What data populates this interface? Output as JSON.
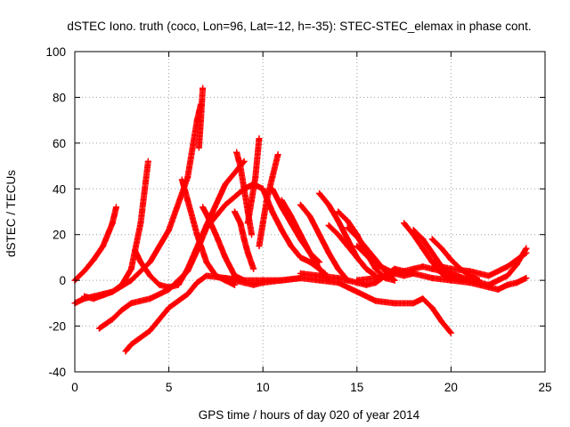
{
  "chart_data": {
    "type": "scatter",
    "title": "dSTEC Iono. truth (coco, Lon=96, Lat=-12, h=-35): STEC-STEC_elemax in phase cont.",
    "xlabel": "GPS time / hours of day 020 of year 2014",
    "ylabel": "dSTEC  / TECUs",
    "xlim": [
      0,
      25
    ],
    "ylim": [
      -40,
      100
    ],
    "x_ticks": [
      "0",
      "5",
      "10",
      "15",
      "20",
      "25"
    ],
    "y_ticks": [
      "-40",
      "-20",
      "0",
      "20",
      "40",
      "60",
      "80",
      "100"
    ],
    "grid": true,
    "marker": "+",
    "series_color": "#ff0000",
    "series": [
      {
        "x": [
          0.0,
          0.5,
          1.0,
          1.5,
          2.0,
          2.2
        ],
        "y": [
          0,
          4,
          9,
          15,
          25,
          32
        ]
      },
      {
        "x": [
          0.0,
          0.5,
          1.0,
          1.5,
          2.0,
          2.5,
          3.0,
          3.5,
          3.9
        ],
        "y": [
          -10,
          -8,
          -7,
          -6,
          -5,
          -2,
          5,
          25,
          52
        ]
      },
      {
        "x": [
          0.5,
          1.0,
          2.0,
          3.0,
          4.0,
          5.0,
          6.0,
          6.5,
          6.7
        ],
        "y": [
          -7,
          -8,
          -5,
          0,
          8,
          22,
          45,
          70,
          77
        ]
      },
      {
        "x": [
          6.6,
          6.7,
          6.8
        ],
        "y": [
          58,
          70,
          84
        ]
      },
      {
        "x": [
          1.3,
          2.0,
          2.5,
          3.0,
          4.0,
          5.0,
          6.0,
          6.5,
          7.0,
          8.0,
          9.0,
          9.5,
          10.0
        ],
        "y": [
          -21,
          -17,
          -13,
          -10,
          -8,
          -4,
          4,
          13,
          23,
          33,
          40,
          42,
          40
        ]
      },
      {
        "x": [
          2.7,
          3.0,
          4.0,
          5.0,
          6.0,
          6.5,
          7.0,
          8.0,
          9.0,
          10.0,
          11.0,
          12.0
        ],
        "y": [
          -31,
          -28,
          -22,
          -12,
          -6,
          -1,
          2,
          1,
          0,
          0,
          0,
          1
        ]
      },
      {
        "x": [
          3.2,
          3.5,
          4.0,
          4.5,
          5.0,
          5.5,
          6.0,
          7.0,
          8.0,
          9.0
        ],
        "y": [
          13,
          8,
          2,
          -2,
          -3,
          -2,
          5,
          24,
          42,
          52
        ]
      },
      {
        "x": [
          5.7,
          6.0,
          6.5,
          7.0,
          7.5,
          8.0,
          8.5
        ],
        "y": [
          44,
          35,
          20,
          8,
          2,
          0,
          -2
        ]
      },
      {
        "x": [
          6.8,
          7.0,
          7.5,
          8.0,
          8.5,
          9.0
        ],
        "y": [
          32,
          29,
          20,
          10,
          2,
          0
        ]
      },
      {
        "x": [
          8.6,
          8.8,
          9.0,
          9.2,
          9.4
        ],
        "y": [
          56,
          50,
          40,
          30,
          20
        ]
      },
      {
        "x": [
          9.2,
          9.4,
          9.6,
          9.8
        ],
        "y": [
          25,
          35,
          45,
          62
        ]
      },
      {
        "x": [
          8.5,
          8.8,
          9.0,
          9.2,
          9.5
        ],
        "y": [
          30,
          25,
          18,
          12,
          5
        ]
      },
      {
        "x": [
          9.8,
          10.0,
          10.2,
          10.5,
          10.8
        ],
        "y": [
          15,
          25,
          35,
          45,
          55
        ]
      },
      {
        "x": [
          10.0,
          10.5,
          11.0,
          11.5,
          12.0,
          12.5,
          13.0,
          13.3
        ],
        "y": [
          40,
          30,
          22,
          15,
          10,
          8,
          5,
          3
        ]
      },
      {
        "x": [
          10.5,
          11.0,
          11.5,
          12.0,
          12.5,
          13.0
        ],
        "y": [
          40,
          32,
          25,
          18,
          12,
          8
        ]
      },
      {
        "x": [
          11.0,
          11.5,
          12.0,
          12.5,
          13.0,
          13.5
        ],
        "y": [
          35,
          28,
          20,
          12,
          5,
          0
        ]
      },
      {
        "x": [
          12.0,
          12.5,
          13.0,
          13.5,
          14.0,
          14.5
        ],
        "y": [
          33,
          28,
          20,
          12,
          5,
          0
        ]
      },
      {
        "x": [
          13.0,
          13.5,
          14.0,
          14.5,
          15.0,
          15.5,
          16.0
        ],
        "y": [
          38,
          33,
          26,
          18,
          10,
          5,
          2
        ]
      },
      {
        "x": [
          13.5,
          14.0,
          14.5,
          15.0,
          15.5,
          16.0
        ],
        "y": [
          24,
          20,
          15,
          10,
          5,
          2
        ]
      },
      {
        "x": [
          14.0,
          14.5,
          15.0,
          15.5,
          16.0,
          16.5,
          17.0
        ],
        "y": [
          30,
          26,
          20,
          12,
          5,
          1,
          0
        ]
      },
      {
        "x": [
          14.5,
          15.0,
          15.5,
          16.0,
          16.5,
          17.0
        ],
        "y": [
          23,
          19,
          14,
          9,
          4,
          0
        ]
      },
      {
        "x": [
          15.0,
          15.5,
          16.0,
          16.5,
          17.0,
          17.5,
          18.0
        ],
        "y": [
          15,
          11,
          7,
          5,
          3,
          2,
          3
        ]
      },
      {
        "x": [
          17.5,
          18.0,
          18.5,
          19.0,
          19.5,
          20.0
        ],
        "y": [
          25,
          20,
          14,
          8,
          3,
          0
        ]
      },
      {
        "x": [
          18.0,
          18.5,
          19.0,
          19.5,
          20.0,
          20.5
        ],
        "y": [
          22,
          18,
          12,
          6,
          2,
          0
        ]
      },
      {
        "x": [
          19.0,
          19.5,
          20.0,
          20.5,
          21.0,
          21.5
        ],
        "y": [
          18,
          14,
          9,
          5,
          2,
          0
        ]
      },
      {
        "x": [
          8.0,
          8.5,
          9.0,
          9.5,
          10.0,
          11.0,
          12.0,
          13.0,
          14.0,
          15.0,
          16.0,
          17.0,
          18.0,
          18.5,
          19.0,
          19.5,
          20.0
        ],
        "y": [
          1,
          0,
          -1,
          -2,
          -1,
          0,
          1,
          0,
          -1,
          -5,
          -9,
          -10,
          -10,
          -8,
          -12,
          -18,
          -23
        ]
      },
      {
        "x": [
          12.0,
          13.0,
          14.0,
          15.0,
          15.5,
          16.0,
          16.5,
          17.0,
          18.0,
          19.0,
          20.0,
          21.0,
          22.0,
          22.5,
          23.0,
          23.5,
          24.0
        ],
        "y": [
          3,
          2,
          1,
          -1,
          -2,
          -1,
          2,
          5,
          3,
          1,
          0,
          -1,
          -3,
          -4,
          -2,
          -1,
          1
        ]
      },
      {
        "x": [
          15.0,
          16.0,
          17.0,
          18.0,
          18.5,
          19.0,
          19.5,
          20.0,
          21.0,
          22.0,
          23.0,
          23.5,
          24.0
        ],
        "y": [
          0,
          1,
          3,
          5,
          6,
          5,
          4,
          3,
          0,
          -2,
          2,
          7,
          14
        ]
      },
      {
        "x": [
          19.0,
          19.5,
          20.0,
          21.0,
          22.0,
          23.0,
          24.0
        ],
        "y": [
          8,
          6,
          5,
          4,
          2,
          6,
          12
        ]
      }
    ]
  }
}
